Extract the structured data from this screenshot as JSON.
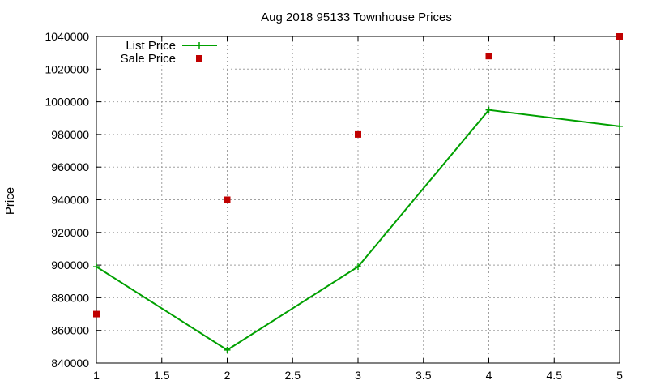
{
  "chart_data": {
    "type": "line",
    "title": "Aug 2018 95133 Townhouse Prices",
    "xlabel": "",
    "ylabel": "Price",
    "xlim": [
      1,
      5
    ],
    "ylim": [
      840000,
      1040000
    ],
    "xticks": [
      "1",
      "1.5",
      "2",
      "2.5",
      "3",
      "3.5",
      "4",
      "4.5",
      "5"
    ],
    "yticks": [
      "840000",
      "860000",
      "880000",
      "900000",
      "920000",
      "940000",
      "960000",
      "980000",
      "1000000",
      "1020000",
      "1040000"
    ],
    "grid": true,
    "legend_position": "top-left",
    "series": [
      {
        "name": "List Price",
        "style": "linespoints",
        "color": "#00a000",
        "x": [
          1,
          2,
          3,
          4,
          5
        ],
        "values": [
          899000,
          848000,
          899000,
          995000,
          985000
        ]
      },
      {
        "name": "Sale Price",
        "style": "points",
        "color": "#c00000",
        "x": [
          1,
          2,
          3,
          4,
          5
        ],
        "values": [
          870000,
          940000,
          980000,
          1028000,
          1040000
        ]
      }
    ]
  }
}
